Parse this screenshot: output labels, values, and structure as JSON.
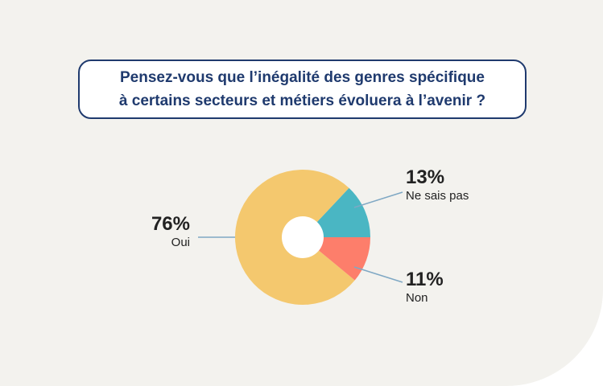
{
  "question": {
    "line1": "Pensez-vous que l’inégalité des genres spécifique",
    "line2": "à certains secteurs et métiers évoluera à l’avenir ?"
  },
  "colors": {
    "background": "#f3f2ee",
    "question_text": "#1f3a6e",
    "leader_line": "#7fa8c4",
    "hole": "#ffffff"
  },
  "chart_data": {
    "type": "pie",
    "donut": true,
    "start_from": "3 o'clock, counter-clockwise",
    "slices": [
      {
        "label": "Ne sais pas",
        "value": 13,
        "display": "13%",
        "color": "#4ab6c3"
      },
      {
        "label": "Oui",
        "value": 76,
        "display": "76%",
        "color": "#f4c86e"
      },
      {
        "label": "Non",
        "value": 11,
        "display": "11%",
        "color": "#fd7e6b"
      }
    ]
  }
}
